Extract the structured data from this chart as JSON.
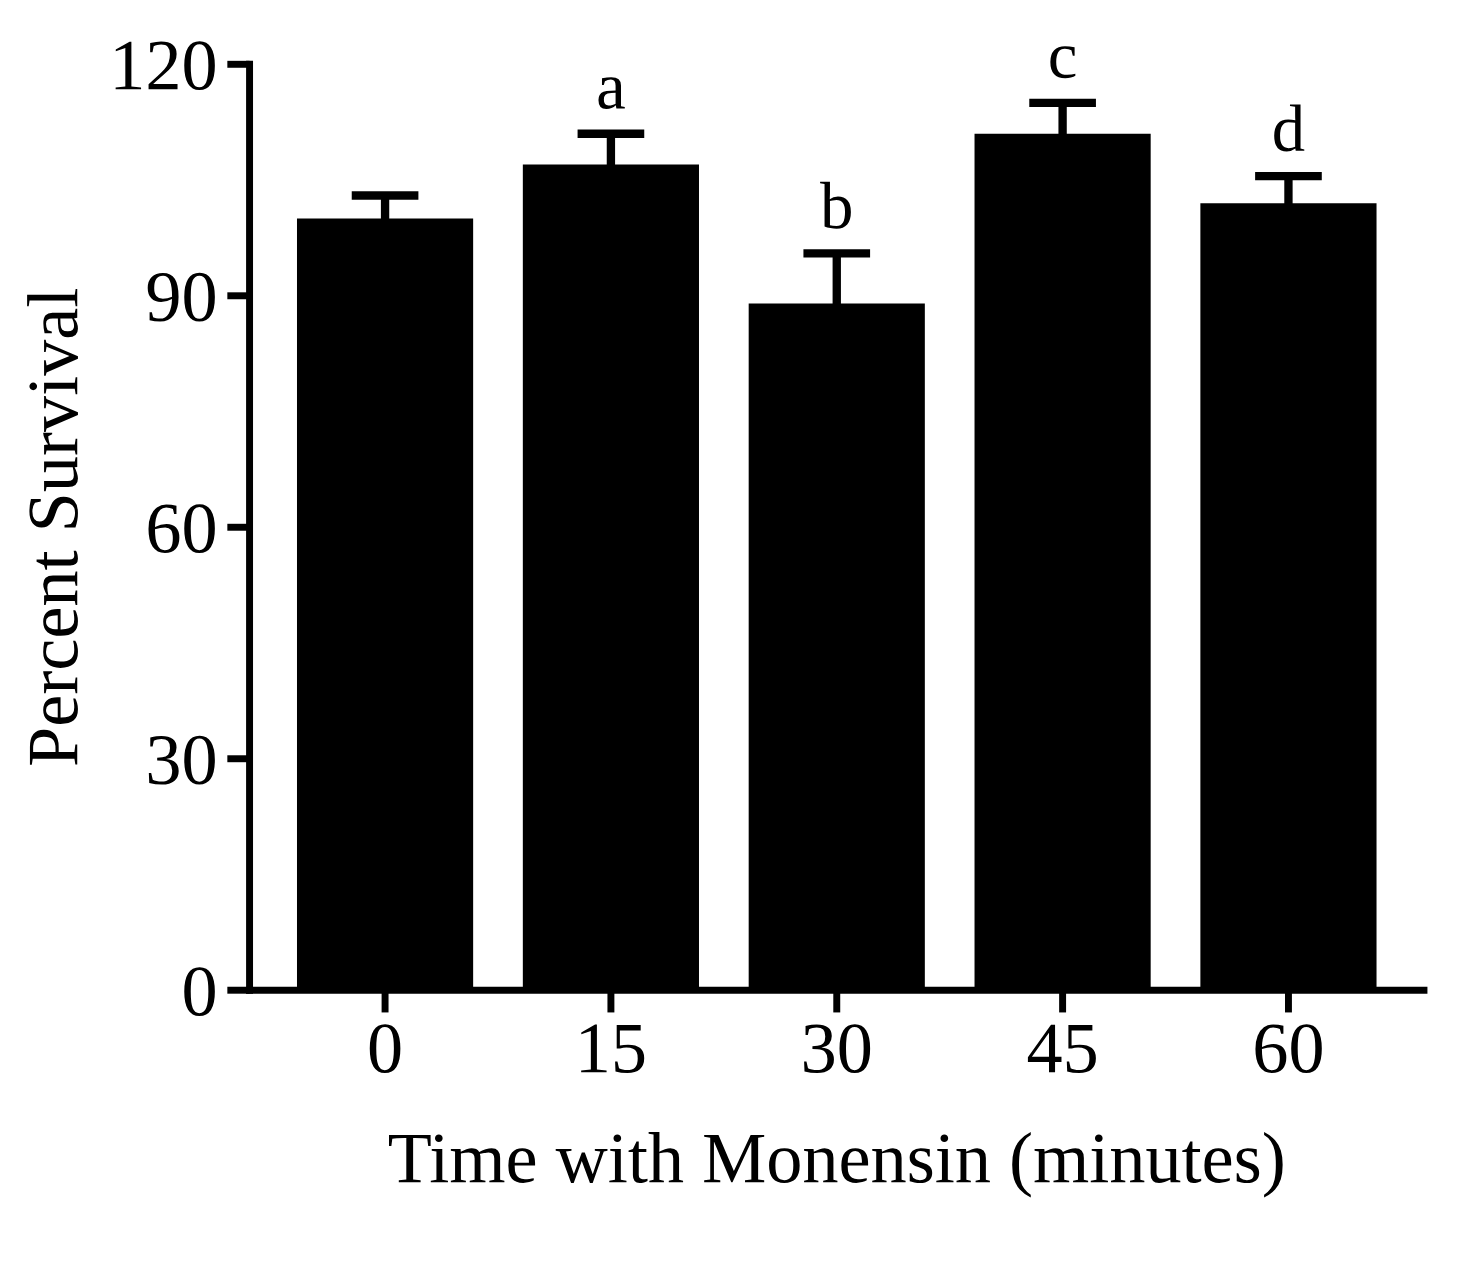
{
  "chart_data": {
    "type": "bar",
    "xlabel": "Time with Monensin (minutes)",
    "ylabel": "Percent Survival",
    "categories": [
      "0",
      "15",
      "30",
      "45",
      "60"
    ],
    "values": [
      100,
      107,
      89,
      111,
      102
    ],
    "errors": [
      3,
      4,
      6.5,
      4,
      3.5
    ],
    "color": "#000000",
    "ylim": [
      0,
      120
    ],
    "yticks": [
      0,
      30,
      60,
      90,
      120
    ],
    "grid": false,
    "annotations": [
      {
        "text": "a",
        "x": "15",
        "y": 111
      },
      {
        "text": "b",
        "x": "30",
        "y": 95.5
      },
      {
        "text": "c",
        "x": "45",
        "y": 115
      },
      {
        "text": "d",
        "x": "60",
        "y": 105.5
      }
    ]
  }
}
